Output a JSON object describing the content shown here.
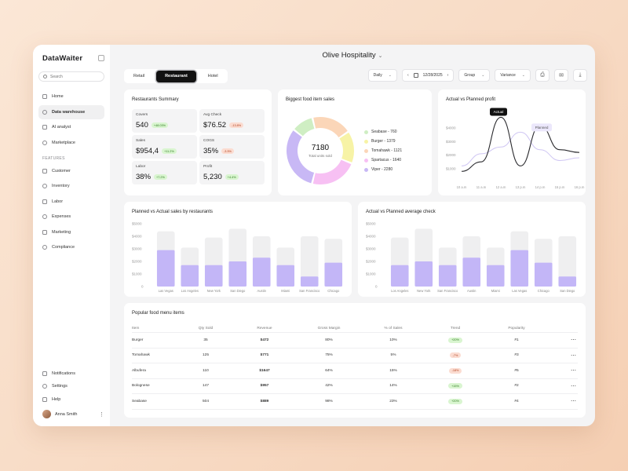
{
  "brand": {
    "name": "DataWaiter"
  },
  "search": {
    "placeholder": "Search"
  },
  "sidebar": {
    "items": [
      {
        "label": "Home",
        "icon": "home-icon"
      },
      {
        "label": "Data warehouse",
        "icon": "database-icon",
        "active": true
      },
      {
        "label": "AI analyst",
        "icon": "chat-icon"
      },
      {
        "label": "Marketplace",
        "icon": "globe-icon"
      }
    ],
    "features_title": "FEATURES",
    "features": [
      {
        "label": "Customer",
        "icon": "user-icon"
      },
      {
        "label": "Inventory",
        "icon": "box-icon"
      },
      {
        "label": "Labor",
        "icon": "worker-icon"
      },
      {
        "label": "Expenses",
        "icon": "receipt-icon"
      },
      {
        "label": "Marketing",
        "icon": "chart-icon"
      },
      {
        "label": "Compliance",
        "icon": "document-icon"
      }
    ],
    "bottom": [
      {
        "label": "Notifications",
        "icon": "bell-icon"
      },
      {
        "label": "Settings",
        "icon": "gear-icon"
      },
      {
        "label": "Help",
        "icon": "help-icon"
      }
    ],
    "user": {
      "name": "Anna Smith"
    }
  },
  "header": {
    "title": "Olive Hospitality"
  },
  "tabs": [
    "Retail",
    "Restaurant",
    "Hotel"
  ],
  "controls": {
    "period": "Daily",
    "date": "12/28/2025",
    "group": "Group",
    "variance": "Variance"
  },
  "summary": {
    "title": "Restaurants Summary",
    "metrics": [
      {
        "label": "Covers",
        "value": "540",
        "badge": "+48.03%",
        "dir": "up"
      },
      {
        "label": "Avg Check",
        "value": "$76.52",
        "badge": "-13.8%",
        "dir": "down"
      },
      {
        "label": "Sales",
        "value": "$954,4",
        "badge": "+11.2%",
        "dir": "up"
      },
      {
        "label": "COGS",
        "value": "35%",
        "badge": "-3.5%",
        "dir": "down"
      },
      {
        "label": "Labor",
        "value": "38%",
        "badge": "+7.2%",
        "dir": "up"
      },
      {
        "label": "Profit",
        "value": "5,230",
        "badge": "+4.4%",
        "dir": "up"
      }
    ]
  },
  "food_sales": {
    "title": "Biggest food item sales",
    "total": "7180",
    "total_label": "Total units sold",
    "colors": [
      "#f7f3a6",
      "#fbd6b8",
      "#f7c0f3",
      "#c8b8f5",
      "#cfeec3"
    ]
  },
  "profit": {
    "title": "Actual vs Planned profit",
    "actual_label": "Actual",
    "planned_label": "Planned"
  },
  "sales_bars": {
    "title": "Planned vs Actual sales by restaurants"
  },
  "avg_check": {
    "title": "Actual vs Planned average check"
  },
  "menu": {
    "title": "Popular food menu items",
    "headers": [
      "Item",
      "Qty Sold",
      "Revenue",
      "Gross Margin",
      "% of Sales",
      "Trend",
      "Popularity"
    ],
    "rows": [
      {
        "item": "Burger",
        "qty": "35",
        "revenue": "$472",
        "margin": "80%",
        "share": "10%",
        "trend": "+20%",
        "dir": "up",
        "pop": "#1"
      },
      {
        "item": "Tomahawk",
        "qty": "125",
        "revenue": "$771",
        "margin": "75%",
        "share": "5%",
        "trend": "-7%",
        "dir": "down",
        "pop": "#3"
      },
      {
        "item": "Albufera",
        "qty": "110",
        "revenue": "$1647",
        "margin": "64%",
        "share": "15%",
        "trend": "-18%",
        "dir": "down",
        "pop": "#5"
      },
      {
        "item": "Bolognese",
        "qty": "147",
        "revenue": "$957",
        "margin": "42%",
        "share": "14%",
        "trend": "+15%",
        "dir": "up",
        "pop": "#2"
      },
      {
        "item": "Seabase",
        "qty": "504",
        "revenue": "$889",
        "margin": "98%",
        "share": "23%",
        "trend": "+20%",
        "dir": "up",
        "pop": "#4"
      }
    ]
  },
  "chart_data": [
    {
      "type": "pie",
      "categories": [
        "Seabase",
        "Burger",
        "Tomahawk",
        "Spartacus",
        "Viper"
      ],
      "values": [
        760,
        1379,
        1121,
        1640,
        2280
      ],
      "legend": [
        "Seabase - 760",
        "Burger - 1379",
        "Tomahawk - 1121",
        "Spartacus - 1640",
        "Viper - 2280"
      ]
    },
    {
      "type": "line",
      "x": [
        "10 a.m",
        "11 a.m",
        "12 a.m",
        "13 p.m",
        "14 p.m",
        "15 p.m",
        "16 p.m"
      ],
      "yticks": [
        "$1000",
        "$2000",
        "$3000",
        "$4000"
      ],
      "ylim": [
        0,
        5000
      ],
      "series": [
        {
          "name": "Actual",
          "values": [
            800,
            1500,
            4800,
            1200,
            4200,
            2400,
            2200
          ]
        },
        {
          "name": "Planned",
          "values": [
            1200,
            2100,
            2600,
            3700,
            2400,
            1600,
            1800
          ]
        }
      ]
    },
    {
      "type": "bar",
      "categories": [
        "Las Vegas",
        "Los Angeles",
        "New York",
        "San Diego",
        "Austin",
        "Miami",
        "San Francisco",
        "Chicago"
      ],
      "yticks": [
        "0",
        "$1000",
        "$2000",
        "$3000",
        "$4000",
        "$5000"
      ],
      "ylim": [
        0,
        5000
      ],
      "series": [
        {
          "name": "Planned",
          "values": [
            4400,
            3100,
            3900,
            4600,
            4000,
            3100,
            4000,
            3800
          ]
        },
        {
          "name": "Actual",
          "values": [
            2900,
            1700,
            1700,
            2000,
            2300,
            1700,
            800,
            1900
          ]
        }
      ]
    },
    {
      "type": "bar",
      "categories": [
        "Los Angeles",
        "New York",
        "San Francisco",
        "Austin",
        "Miami",
        "Las Vegas",
        "Chicago",
        "San Diego"
      ],
      "yticks": [
        "0",
        "$1000",
        "$2000",
        "$3000",
        "$4000",
        "$5000"
      ],
      "ylim": [
        0,
        5000
      ],
      "series": [
        {
          "name": "Planned",
          "values": [
            3900,
            4600,
            3100,
            4000,
            3100,
            4400,
            3800,
            4000
          ]
        },
        {
          "name": "Actual",
          "values": [
            1700,
            2000,
            1700,
            2300,
            1700,
            2900,
            1900,
            800
          ]
        }
      ]
    }
  ]
}
